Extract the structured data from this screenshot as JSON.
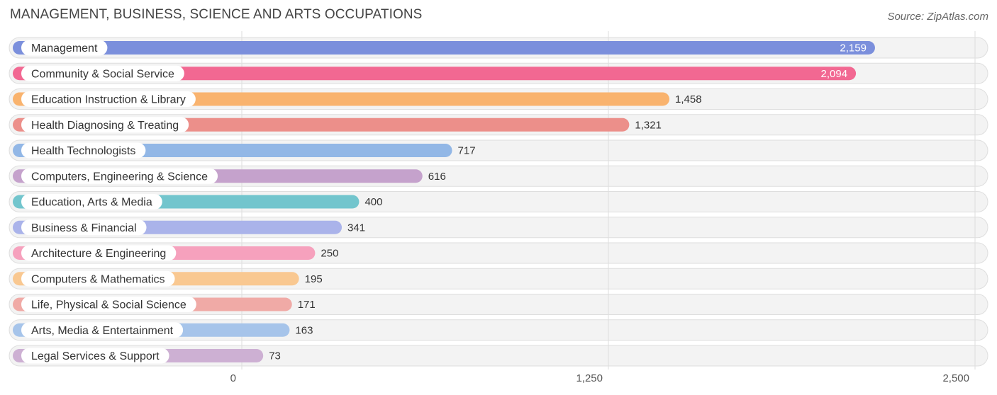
{
  "header": {
    "title": "MANAGEMENT, BUSINESS, SCIENCE AND ARTS OCCUPATIONS",
    "source": "Source: ZipAtlas.com"
  },
  "chart_data": {
    "type": "bar",
    "orientation": "horizontal",
    "title": "MANAGEMENT, BUSINESS, SCIENCE AND ARTS OCCUPATIONS",
    "xlabel": "",
    "ylabel": "",
    "xlim": [
      0,
      2500
    ],
    "ticks": [
      0,
      1250,
      2500
    ],
    "tick_labels": [
      "0",
      "1,250",
      "2,500"
    ],
    "grid": true,
    "categories": [
      "Management",
      "Community & Social Service",
      "Education Instruction & Library",
      "Health Diagnosing & Treating",
      "Health Technologists",
      "Computers, Engineering & Science",
      "Education, Arts & Media",
      "Business & Financial",
      "Architecture & Engineering",
      "Computers & Mathematics",
      "Life, Physical & Social Science",
      "Arts, Media & Entertainment",
      "Legal Services & Support"
    ],
    "values": [
      2159,
      2094,
      1458,
      1321,
      717,
      616,
      400,
      341,
      250,
      195,
      171,
      163,
      73
    ],
    "value_labels": [
      "2,159",
      "2,094",
      "1,458",
      "1,321",
      "717",
      "616",
      "400",
      "341",
      "250",
      "195",
      "171",
      "163",
      "73"
    ],
    "colors": [
      "#7b8fdc",
      "#f26892",
      "#f9b36e",
      "#ec8f8a",
      "#92b7e6",
      "#c5a2cc",
      "#72c5cd",
      "#aab3ea",
      "#f6a1bd",
      "#f9c891",
      "#f0aaa6",
      "#a6c4ea",
      "#cdb0d3"
    ]
  }
}
